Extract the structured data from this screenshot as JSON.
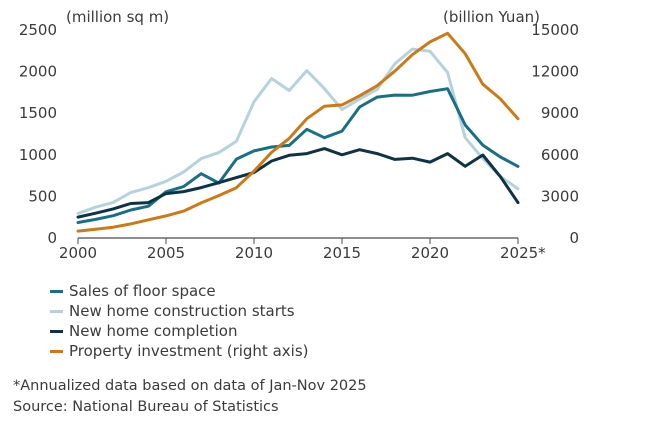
{
  "chart_data": {
    "type": "line",
    "x": [
      2000,
      2001,
      2002,
      2003,
      2004,
      2005,
      2006,
      2007,
      2008,
      2009,
      2010,
      2011,
      2012,
      2013,
      2014,
      2015,
      2016,
      2017,
      2018,
      2019,
      2020,
      2021,
      2022,
      2023,
      2024,
      2025
    ],
    "x_tick_labels": [
      "2000",
      "2005",
      "2010",
      "2015",
      "2020",
      "2025*"
    ],
    "x_tick_values": [
      2000,
      2005,
      2010,
      2015,
      2020,
      2025
    ],
    "left_axis": {
      "unit_label": "(million sq m)",
      "ylim": [
        0,
        2500
      ],
      "ticks": [
        "0",
        "500",
        "1000",
        "1500",
        "2000",
        "2500"
      ]
    },
    "right_axis": {
      "unit_label": "(billion Yuan)",
      "ylim": [
        0,
        15000
      ],
      "ticks": [
        "0",
        "3000",
        "6000",
        "9000",
        "12000",
        "15000"
      ]
    },
    "series": [
      {
        "name": "Sales of floor space",
        "axis": "left",
        "color": "#1a6f85",
        "values": [
          186,
          224,
          268,
          337,
          382,
          555,
          618,
          773,
          660,
          948,
          1047,
          1094,
          1113,
          1306,
          1206,
          1285,
          1574,
          1694,
          1717,
          1716,
          1761,
          1794,
          1358,
          1117,
          974,
          860
        ]
      },
      {
        "name": "New home construction starts",
        "axis": "left",
        "color": "#b5d3dc",
        "values": [
          296,
          370,
          428,
          547,
          604,
          681,
          793,
          954,
          1026,
          1164,
          1637,
          1917,
          1773,
          2012,
          1796,
          1545,
          1669,
          1787,
          2094,
          2271,
          2244,
          1989,
          1206,
          954,
          739,
          590
        ]
      },
      {
        "name": "New home completion",
        "axis": "left",
        "color": "#0e3344",
        "values": [
          251,
          298,
          350,
          415,
          425,
          534,
          558,
          606,
          665,
          726,
          787,
          926,
          994,
          1014,
          1075,
          1000,
          1061,
          1015,
          945,
          959,
          912,
          1014,
          862,
          998,
          737,
          425
        ]
      },
      {
        "name": "Property investment (right axis)",
        "axis": "right",
        "color": "#cc7a17",
        "values": [
          498,
          634,
          779,
          1015,
          1316,
          1591,
          1942,
          2529,
          3058,
          3624,
          4826,
          6180,
          7180,
          8601,
          9504,
          9598,
          10258,
          10980,
          12026,
          13219,
          14144,
          14760,
          13290,
          11091,
          10028,
          8600
        ]
      }
    ],
    "legend_placement": "bottom-left",
    "grid": false
  },
  "notes": {
    "footnote": "*Annualized data based on data of Jan-Nov 2025",
    "source": "Source: National Bureau of Statistics"
  }
}
